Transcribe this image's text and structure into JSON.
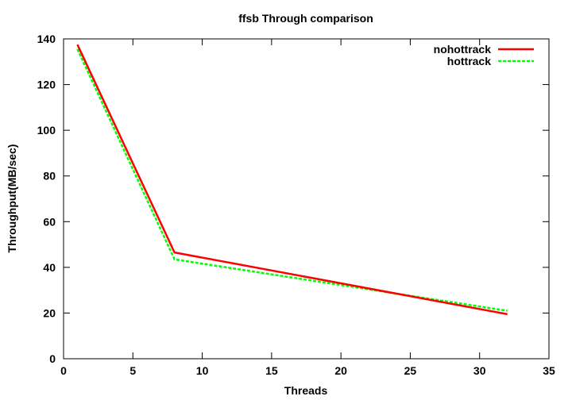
{
  "chart_data": {
    "type": "line",
    "title": "ffsb Through comparison",
    "xlabel": "Threads",
    "ylabel": "Throughput(MB/sec)",
    "xlim": [
      0,
      35
    ],
    "ylim": [
      0,
      140
    ],
    "xticks": [
      0,
      5,
      10,
      15,
      20,
      25,
      30,
      35
    ],
    "yticks": [
      0,
      20,
      40,
      60,
      80,
      100,
      120,
      140
    ],
    "grid": false,
    "legend_position": "top-right",
    "series": [
      {
        "name": "nohottrack",
        "color": "#ff0000",
        "dash": "solid",
        "x": [
          1,
          8,
          32
        ],
        "y": [
          137.5,
          46.5,
          19.5
        ]
      },
      {
        "name": "hottrack",
        "color": "#00ff00",
        "dash": "dashed",
        "x": [
          1,
          8,
          32
        ],
        "y": [
          135.5,
          43.5,
          21.0
        ]
      }
    ]
  }
}
